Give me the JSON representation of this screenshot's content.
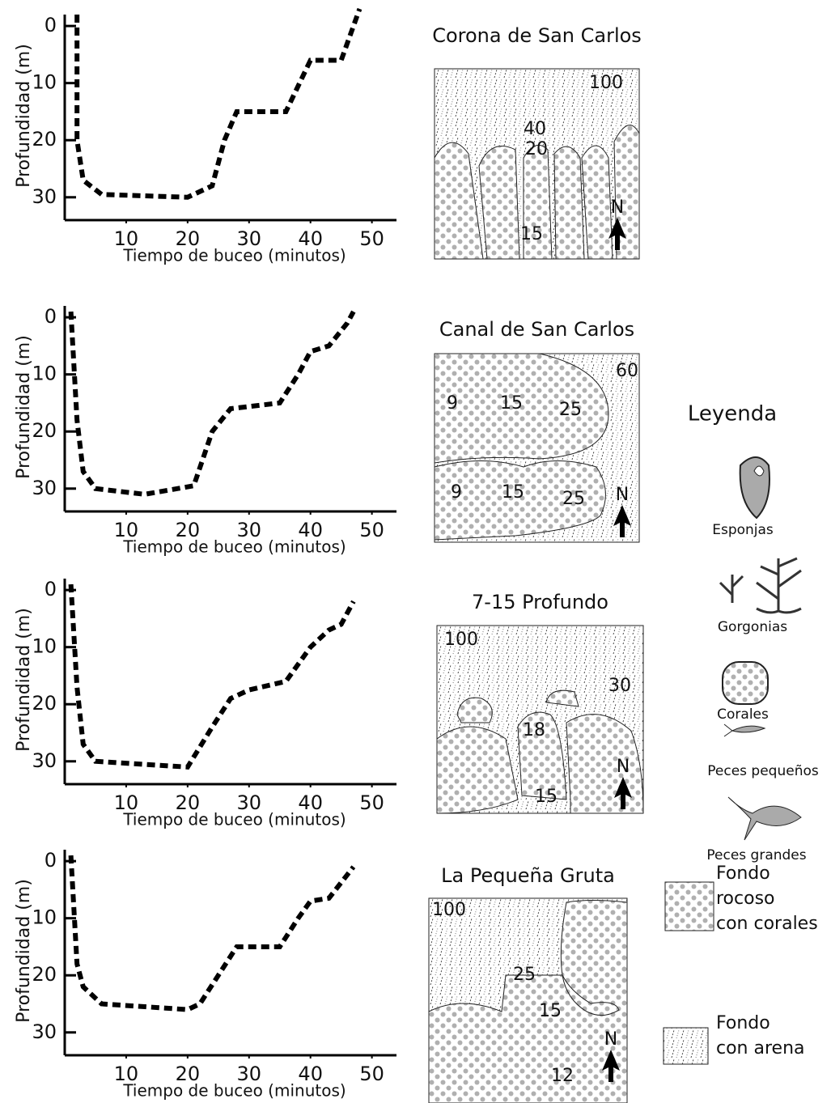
{
  "chart_data": [
    {
      "type": "line",
      "xlabel": "Tiempo de buceo (minutos)",
      "ylabel": "Profundidad (m)",
      "color": "#000000",
      "x": [
        2,
        2,
        3,
        6,
        20,
        24,
        26,
        28,
        36,
        40,
        45,
        47,
        48
      ],
      "values": [
        -2,
        20,
        27,
        29.5,
        30,
        28,
        20,
        15,
        15,
        6,
        6,
        0,
        -3
      ],
      "xlim": [
        0,
        54
      ],
      "ylim": [
        34,
        -2
      ],
      "xticks": [
        10,
        20,
        30,
        40,
        50
      ],
      "yticks": [
        0,
        10,
        20,
        30
      ]
    },
    {
      "type": "line",
      "xlabel": "Tiempo de buceo (minutos)",
      "ylabel": "Profundidad (m)",
      "color": "#000000",
      "x": [
        1,
        2,
        3,
        5,
        13,
        21,
        24,
        27,
        35,
        38,
        40,
        43,
        46,
        47
      ],
      "values": [
        -1,
        18,
        27,
        30,
        31,
        29.5,
        20,
        16,
        15,
        10,
        6,
        5,
        1,
        -1
      ],
      "xlim": [
        0,
        54
      ],
      "ylim": [
        34,
        -2
      ],
      "xticks": [
        10,
        20,
        30,
        40,
        50
      ],
      "yticks": [
        0,
        10,
        20,
        30
      ]
    },
    {
      "type": "line",
      "xlabel": "Tiempo de buceo (minutos)",
      "ylabel": "Profundidad (m)",
      "color": "#000000",
      "x": [
        1,
        2,
        3,
        5,
        20,
        24,
        27,
        30,
        36,
        40,
        43,
        45,
        47
      ],
      "values": [
        -1,
        17,
        27,
        30,
        31,
        24,
        19,
        17.5,
        16,
        10,
        7,
        6,
        2
      ],
      "xlim": [
        0,
        54
      ],
      "ylim": [
        34,
        -2
      ],
      "xticks": [
        10,
        20,
        30,
        40,
        50
      ],
      "yticks": [
        0,
        10,
        20,
        30
      ]
    },
    {
      "type": "line",
      "xlabel": "Tiempo de buceo (minutos)",
      "ylabel": "Profundidad (m)",
      "color": "#000000",
      "x": [
        1,
        2,
        3,
        6,
        20,
        22,
        25,
        28,
        35,
        38,
        40,
        43,
        47
      ],
      "values": [
        -1,
        18,
        22,
        25,
        26,
        25,
        20,
        15,
        15,
        10,
        7,
        6.5,
        1
      ],
      "xlim": [
        0,
        54
      ],
      "ylim": [
        34,
        -2
      ],
      "xticks": [
        10,
        20,
        30,
        40,
        50
      ],
      "yticks": [
        0,
        10,
        20,
        30
      ]
    }
  ],
  "maps": [
    {
      "title": "Corona de San Carlos",
      "labels": [
        "100",
        "40",
        "20",
        "15",
        "N"
      ]
    },
    {
      "title": "Canal de San Carlos",
      "labels": [
        "60",
        "9",
        "15",
        "25",
        "9",
        "15",
        "25",
        "N"
      ]
    },
    {
      "title": "7-15 Profundo",
      "labels": [
        "100",
        "30",
        "18",
        "15",
        "N"
      ]
    },
    {
      "title": "La Pequeña Gruta",
      "labels": [
        "100",
        "25",
        "15",
        "12",
        "N"
      ]
    }
  ],
  "legend": {
    "title": "Leyenda",
    "items": [
      "Esponjas",
      "Gorgonias",
      "Corales",
      "Peces pequeños",
      "Peces grandes"
    ],
    "backgrounds": [
      {
        "lines": [
          "Fondo",
          "rocoso",
          "con corales"
        ]
      },
      {
        "lines": [
          "Fondo",
          "con arena"
        ]
      }
    ]
  }
}
